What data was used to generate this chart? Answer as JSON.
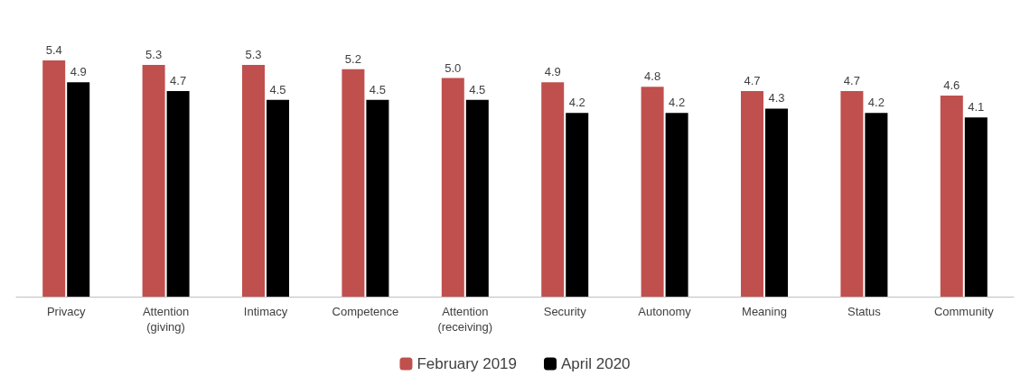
{
  "chart_data": {
    "type": "bar",
    "categories": [
      "Privacy",
      "Attention\n(giving)",
      "Intimacy",
      "Competence",
      "Attention\n(receiving)",
      "Security",
      "Autonomy",
      "Meaning",
      "Status",
      "Community"
    ],
    "series": [
      {
        "name": "February 2019",
        "color": "#c0504d",
        "values": [
          5.4,
          5.3,
          5.3,
          5.2,
          5.0,
          4.9,
          4.8,
          4.7,
          4.7,
          4.6
        ],
        "value_labels": [
          "5.4",
          "5.3",
          "5.3",
          "5.2",
          "5.0",
          "4.9",
          "4.8",
          "4.7",
          "4.7",
          "4.6"
        ]
      },
      {
        "name": "April 2020",
        "color": "#000000",
        "values": [
          4.9,
          4.7,
          4.5,
          4.5,
          4.5,
          4.2,
          4.2,
          4.3,
          4.2,
          4.1
        ],
        "value_labels": [
          "4.9",
          "4.7",
          "4.5",
          "4.5",
          "4.5",
          "4.2",
          "4.2",
          "4.3",
          "4.2",
          "4.1"
        ]
      }
    ],
    "legend": "bottom"
  }
}
